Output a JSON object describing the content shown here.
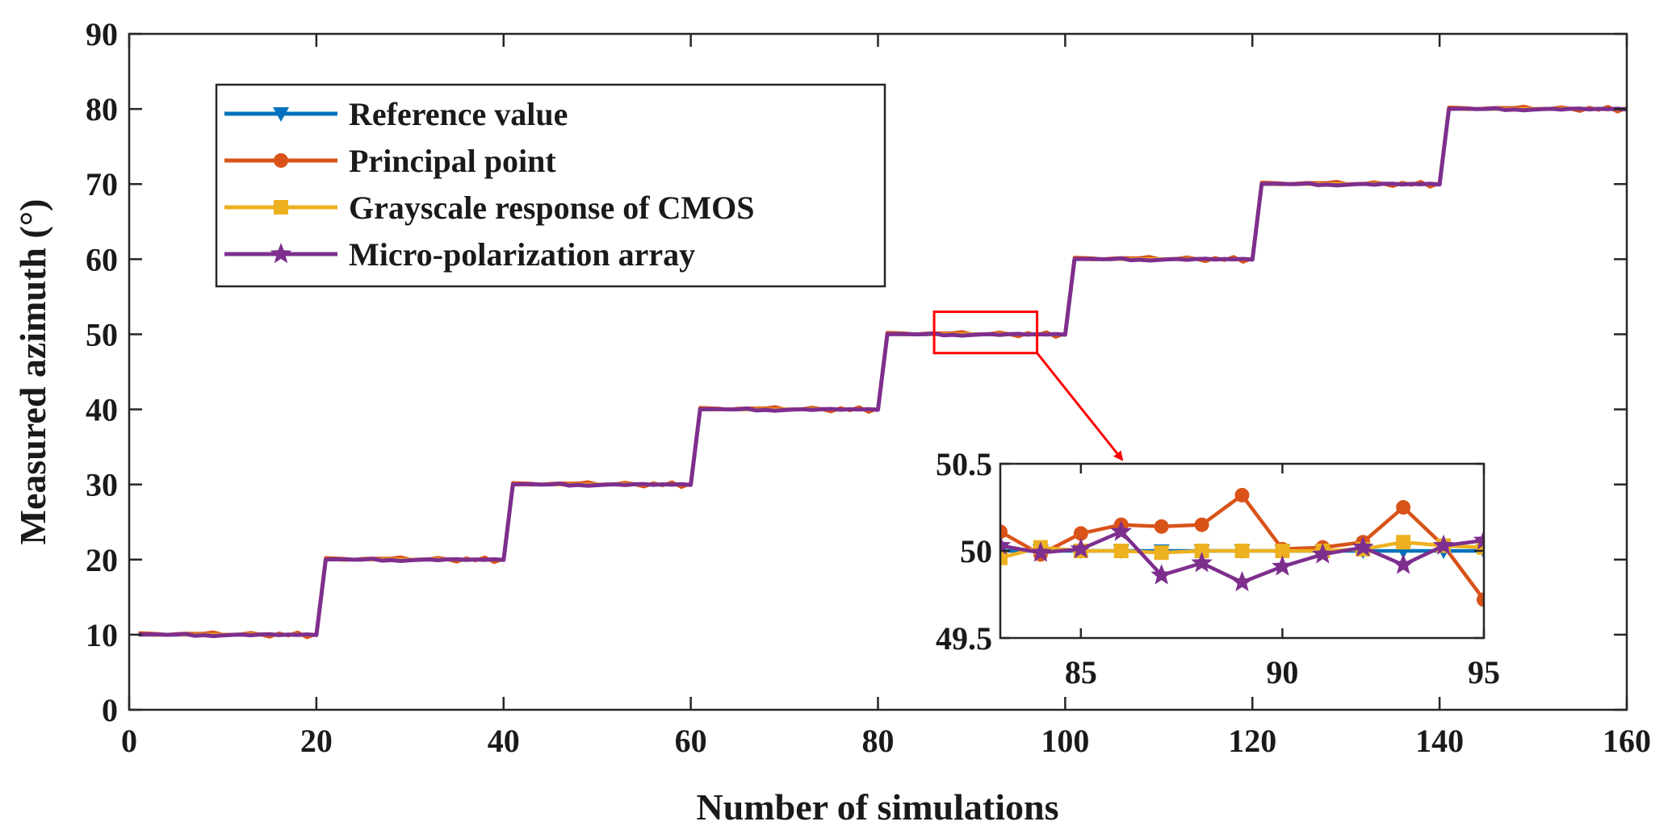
{
  "chart_data": {
    "type": "line",
    "title": "",
    "xlabel": "Number of simulations",
    "ylabel": "Measured azimuth (°)",
    "xlim": [
      0,
      160
    ],
    "ylim": [
      0,
      90
    ],
    "xticks": [
      0,
      20,
      40,
      60,
      80,
      100,
      120,
      140,
      160
    ],
    "yticks": [
      0,
      10,
      20,
      30,
      40,
      50,
      60,
      70,
      80,
      90
    ],
    "grid": false,
    "legend": "top-left",
    "series": [
      {
        "name": "Reference value",
        "color": "#0072BD",
        "marker": "triangle-down",
        "noise": [
          0,
          0,
          0,
          0,
          0,
          0,
          0,
          0,
          0,
          0,
          0,
          0,
          0,
          0,
          0,
          0,
          0,
          0,
          0,
          0
        ]
      },
      {
        "name": "Principal point",
        "color": "#D95319",
        "marker": "circle",
        "noise": [
          0.21,
          0.17,
          0.11,
          -0.02,
          0.1,
          0.15,
          0.14,
          0.15,
          0.32,
          0.01,
          0.02,
          0.05,
          0.25,
          0.03,
          -0.28,
          0.18,
          -0.12,
          0.3,
          -0.35,
          0.12
        ]
      },
      {
        "name": "Grayscale response of CMOS",
        "color": "#EDB120",
        "marker": "square",
        "noise": [
          0.0,
          0.02,
          -0.04,
          0.02,
          0.0,
          0.0,
          -0.01,
          0.0,
          0.0,
          0.0,
          0.0,
          0.01,
          0.05,
          0.03,
          0.02,
          -0.02,
          0.03,
          0.0,
          -0.01,
          0.02
        ]
      },
      {
        "name": "Micro-polarization array",
        "color": "#7E2F8E",
        "marker": "star",
        "noise": [
          0.01,
          0.04,
          0.03,
          -0.01,
          0.01,
          0.11,
          -0.14,
          -0.07,
          -0.18,
          -0.09,
          -0.02,
          0.02,
          -0.08,
          0.03,
          0.06,
          -0.05,
          0.02,
          -0.03,
          0.04,
          -0.06
        ]
      }
    ],
    "steps": [
      {
        "from": 1,
        "to": 20,
        "value": 10
      },
      {
        "from": 21,
        "to": 40,
        "value": 20
      },
      {
        "from": 41,
        "to": 60,
        "value": 30
      },
      {
        "from": 61,
        "to": 80,
        "value": 40
      },
      {
        "from": 81,
        "to": 100,
        "value": 50
      },
      {
        "from": 101,
        "to": 120,
        "value": 60
      },
      {
        "from": 121,
        "to": 140,
        "value": 70
      },
      {
        "from": 141,
        "to": 160,
        "value": 80
      }
    ],
    "inset": {
      "xlim": [
        83,
        95
      ],
      "ylim": [
        49.5,
        50.5
      ],
      "xticks": [
        85,
        90,
        95
      ],
      "yticks": [
        49.5,
        50,
        50.5
      ],
      "ytick_labels": [
        "49.5",
        "50",
        "50.5"
      ],
      "zoom_xlim": [
        86,
        97
      ],
      "zoom_ylim": [
        47.5,
        53
      ],
      "box_color": "#FF0000"
    }
  }
}
